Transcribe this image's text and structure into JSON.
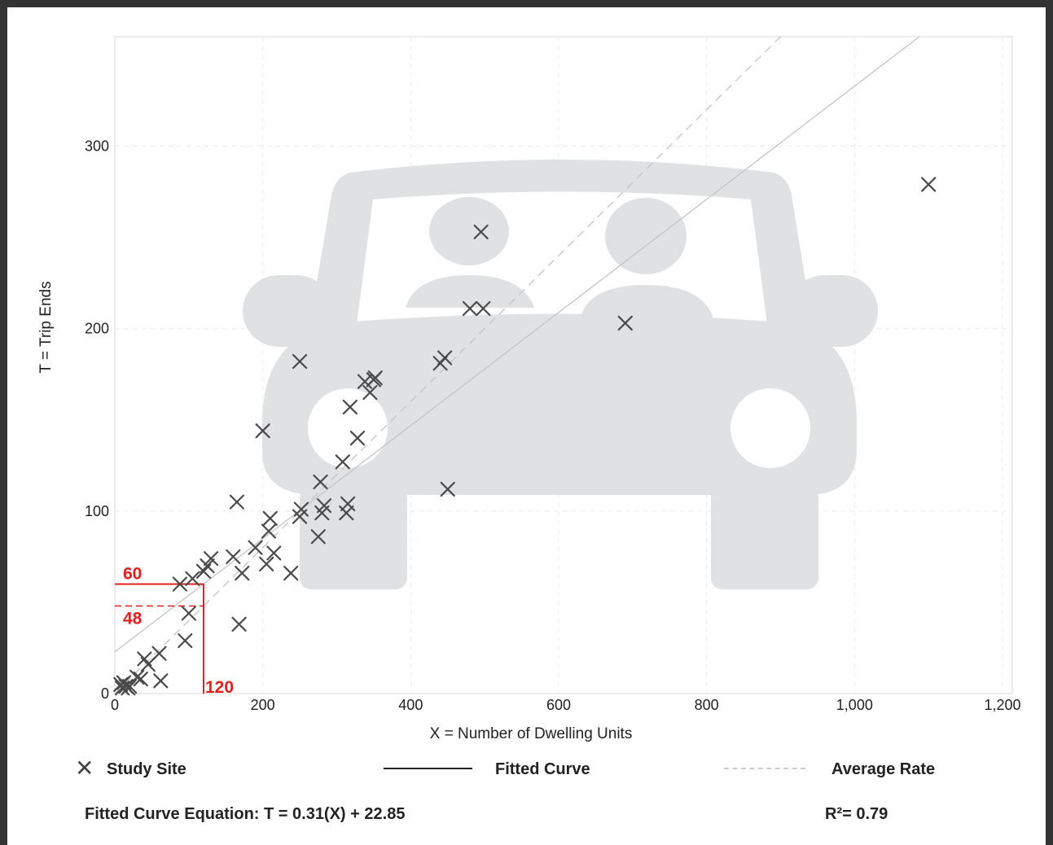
{
  "chart_data": {
    "type": "scatter",
    "xlabel": "X = Number of Dwelling Units",
    "ylabel": "T = Trip Ends",
    "xlim": [
      0,
      1200
    ],
    "ylim": [
      0,
      360
    ],
    "x_ticks": [
      0,
      200,
      400,
      600,
      800,
      1000,
      1200
    ],
    "x_tick_labels": [
      "0",
      "200",
      "400",
      "600",
      "800",
      "1,000",
      "1,200"
    ],
    "y_ticks": [
      0,
      100,
      200,
      300
    ],
    "y_tick_labels": [
      "0",
      "100",
      "200",
      "300"
    ],
    "grid": true,
    "series": [
      {
        "name": "Study Site",
        "marker": "x",
        "points": [
          [
            8,
            5
          ],
          [
            10,
            3
          ],
          [
            12,
            6
          ],
          [
            15,
            4
          ],
          [
            18,
            3
          ],
          [
            20,
            4
          ],
          [
            30,
            9
          ],
          [
            35,
            8
          ],
          [
            40,
            19
          ],
          [
            45,
            16
          ],
          [
            60,
            22
          ],
          [
            62,
            7
          ],
          [
            88,
            60
          ],
          [
            95,
            29
          ],
          [
            100,
            44
          ],
          [
            105,
            63
          ],
          [
            120,
            67
          ],
          [
            125,
            70
          ],
          [
            130,
            74
          ],
          [
            160,
            75
          ],
          [
            165,
            105
          ],
          [
            168,
            38
          ],
          [
            172,
            66
          ],
          [
            190,
            80
          ],
          [
            200,
            144
          ],
          [
            205,
            71
          ],
          [
            208,
            89
          ],
          [
            210,
            96
          ],
          [
            215,
            77
          ],
          [
            238,
            66
          ],
          [
            250,
            182
          ],
          [
            250,
            97
          ],
          [
            252,
            101
          ],
          [
            275,
            86
          ],
          [
            278,
            116
          ],
          [
            280,
            99
          ],
          [
            283,
            103
          ],
          [
            308,
            127
          ],
          [
            313,
            99
          ],
          [
            315,
            104
          ],
          [
            318,
            157
          ],
          [
            328,
            140
          ],
          [
            338,
            171
          ],
          [
            345,
            165
          ],
          [
            350,
            172
          ],
          [
            352,
            173
          ],
          [
            440,
            181
          ],
          [
            446,
            184
          ],
          [
            450,
            112
          ],
          [
            480,
            211
          ],
          [
            495,
            253
          ],
          [
            498,
            211
          ],
          [
            690,
            203
          ],
          [
            1100,
            279
          ]
        ]
      }
    ],
    "fitted_curve": {
      "name": "Fitted Curve",
      "slope": 0.31,
      "intercept": 22.85
    },
    "average_rate": {
      "name": "Average Rate",
      "slope": 0.4,
      "intercept": 0
    },
    "annotations": {
      "input_x": 120,
      "input_x_label": "120",
      "fitted_value": 60,
      "fitted_value_label": "60",
      "average_value": 48,
      "average_value_label": "48"
    },
    "equation": "Fitted Curve Equation: T = 0.31(X) + 22.85",
    "r_squared": "R²= 0.79"
  },
  "legend": {
    "study_site": "Study Site",
    "fitted_curve": "Fitted Curve",
    "average_rate": "Average Rate"
  },
  "colors": {
    "frame": "#333333",
    "marker": "#4a4a4a",
    "annotation": "#e02020",
    "watermark": "#e0e1e3"
  },
  "watermark_icon": "car-with-driver-and-passenger-icon"
}
